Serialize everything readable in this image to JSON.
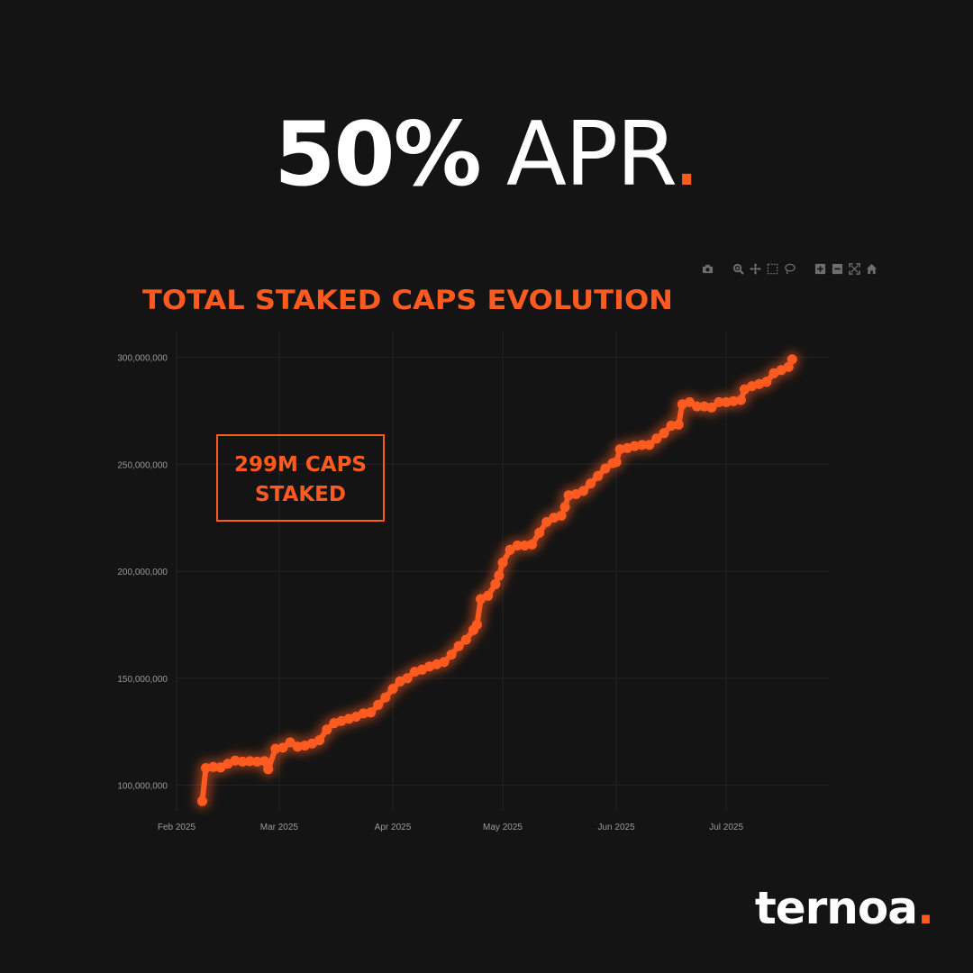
{
  "headline": {
    "bold": "50%",
    "light": " APR",
    "dot": "."
  },
  "brand": {
    "name": "ternoa",
    "dot": "."
  },
  "colors": {
    "accent": "#ff5a1f",
    "background": "#141414",
    "grid": "#232323",
    "tick": "#9a9a9a",
    "modebar": "#6e6e6e"
  },
  "modebar": [
    "camera-icon",
    "zoom-icon",
    "pan-icon",
    "box-select-icon",
    "lasso-select-icon",
    "zoom-in-icon",
    "zoom-out-icon",
    "autoscale-icon",
    "reset-axes-icon"
  ],
  "chart_data": {
    "type": "line",
    "title": "TOTAL STAKED CAPS EVOLUTION",
    "xlabel": "",
    "ylabel": "",
    "annotation": [
      "299M CAPS",
      "STAKED"
    ],
    "x_ticks": [
      {
        "date": "2025-02-01",
        "label": "Feb 2025"
      },
      {
        "date": "2025-03-01",
        "label": "Mar 2025"
      },
      {
        "date": "2025-04-01",
        "label": "Apr 2025"
      },
      {
        "date": "2025-05-01",
        "label": "May 2025"
      },
      {
        "date": "2025-06-01",
        "label": "Jun 2025"
      },
      {
        "date": "2025-07-01",
        "label": "Jul 2025"
      }
    ],
    "y_ticks": [
      {
        "value": 100000000,
        "label": "100,000,000"
      },
      {
        "value": 150000000,
        "label": "150,000,000"
      },
      {
        "value": 200000000,
        "label": "200,000,000"
      },
      {
        "value": 250000000,
        "label": "250,000,000"
      },
      {
        "value": 300000000,
        "label": "300,000,000"
      }
    ],
    "xlim": [
      "2025-02-01",
      "2025-07-29"
    ],
    "ylim": [
      88000000,
      312000000
    ],
    "grid": true,
    "series": [
      {
        "color": "#ff5a1f",
        "points": [
          [
            "2025-02-08",
            92500000
          ],
          [
            "2025-02-09",
            108000000
          ],
          [
            "2025-02-11",
            108500000
          ],
          [
            "2025-02-13",
            108300000
          ],
          [
            "2025-02-15",
            110000000
          ],
          [
            "2025-02-17",
            111500000
          ],
          [
            "2025-02-19",
            111000000
          ],
          [
            "2025-02-21",
            111200000
          ],
          [
            "2025-02-23",
            111000000
          ],
          [
            "2025-02-25",
            111300000
          ],
          [
            "2025-02-26",
            107500000
          ],
          [
            "2025-02-28",
            117000000
          ],
          [
            "2025-03-02",
            117500000
          ],
          [
            "2025-03-04",
            120000000
          ],
          [
            "2025-03-06",
            118000000
          ],
          [
            "2025-03-08",
            118500000
          ],
          [
            "2025-03-10",
            119500000
          ],
          [
            "2025-03-12",
            121000000
          ],
          [
            "2025-03-14",
            126000000
          ],
          [
            "2025-03-16",
            129000000
          ],
          [
            "2025-03-18",
            130000000
          ],
          [
            "2025-03-20",
            131000000
          ],
          [
            "2025-03-22",
            132000000
          ],
          [
            "2025-03-24",
            133500000
          ],
          [
            "2025-03-26",
            134000000
          ],
          [
            "2025-03-28",
            137500000
          ],
          [
            "2025-03-30",
            141000000
          ],
          [
            "2025-04-01",
            145000000
          ],
          [
            "2025-04-03",
            148500000
          ],
          [
            "2025-04-05",
            150000000
          ],
          [
            "2025-04-07",
            153000000
          ],
          [
            "2025-04-09",
            154000000
          ],
          [
            "2025-04-11",
            155500000
          ],
          [
            "2025-04-13",
            156500000
          ],
          [
            "2025-04-15",
            157500000
          ],
          [
            "2025-04-17",
            161000000
          ],
          [
            "2025-04-19",
            165000000
          ],
          [
            "2025-04-21",
            168000000
          ],
          [
            "2025-04-23",
            172500000
          ],
          [
            "2025-04-24",
            175000000
          ],
          [
            "2025-04-25",
            187000000
          ],
          [
            "2025-04-27",
            188500000
          ],
          [
            "2025-04-29",
            194000000
          ],
          [
            "2025-04-30",
            198000000
          ],
          [
            "2025-05-01",
            204000000
          ],
          [
            "2025-05-03",
            210000000
          ],
          [
            "2025-05-05",
            212000000
          ],
          [
            "2025-05-07",
            212000000
          ],
          [
            "2025-05-09",
            212500000
          ],
          [
            "2025-05-11",
            218000000
          ],
          [
            "2025-05-13",
            223000000
          ],
          [
            "2025-05-15",
            225000000
          ],
          [
            "2025-05-17",
            226000000
          ],
          [
            "2025-05-18",
            230000000
          ],
          [
            "2025-05-19",
            235500000
          ],
          [
            "2025-05-21",
            236000000
          ],
          [
            "2025-05-23",
            237500000
          ],
          [
            "2025-05-25",
            241000000
          ],
          [
            "2025-05-27",
            244500000
          ],
          [
            "2025-05-29",
            248000000
          ],
          [
            "2025-05-31",
            250500000
          ],
          [
            "2025-06-01",
            251000000
          ],
          [
            "2025-06-02",
            257000000
          ],
          [
            "2025-06-04",
            257500000
          ],
          [
            "2025-06-06",
            258500000
          ],
          [
            "2025-06-08",
            259000000
          ],
          [
            "2025-06-10",
            259000000
          ],
          [
            "2025-06-12",
            262000000
          ],
          [
            "2025-06-14",
            264500000
          ],
          [
            "2025-06-16",
            268000000
          ],
          [
            "2025-06-18",
            268500000
          ],
          [
            "2025-06-19",
            278000000
          ],
          [
            "2025-06-21",
            279000000
          ],
          [
            "2025-06-23",
            277000000
          ],
          [
            "2025-06-25",
            277000000
          ],
          [
            "2025-06-27",
            276500000
          ],
          [
            "2025-06-29",
            279000000
          ],
          [
            "2025-07-01",
            279000000
          ],
          [
            "2025-07-03",
            279500000
          ],
          [
            "2025-07-05",
            280000000
          ],
          [
            "2025-07-06",
            285000000
          ],
          [
            "2025-07-08",
            286500000
          ],
          [
            "2025-07-10",
            287500000
          ],
          [
            "2025-07-12",
            288500000
          ],
          [
            "2025-07-14",
            292500000
          ],
          [
            "2025-07-16",
            294000000
          ],
          [
            "2025-07-18",
            295500000
          ],
          [
            "2025-07-19",
            299000000
          ]
        ]
      }
    ]
  }
}
